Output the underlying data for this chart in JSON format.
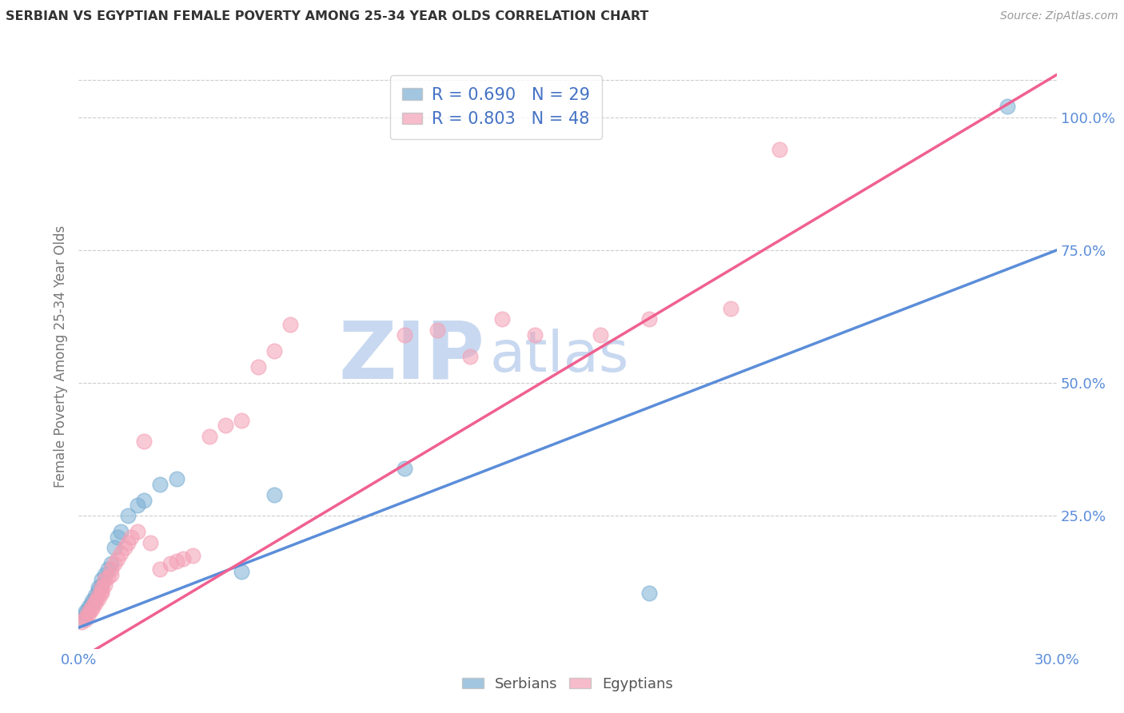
{
  "title": "SERBIAN VS EGYPTIAN FEMALE POVERTY AMONG 25-34 YEAR OLDS CORRELATION CHART",
  "source": "Source: ZipAtlas.com",
  "ylabel": "Female Poverty Among 25-34 Year Olds",
  "xlim": [
    0.0,
    0.3
  ],
  "ylim": [
    0.0,
    1.1
  ],
  "xticks": [
    0.0,
    0.05,
    0.1,
    0.15,
    0.2,
    0.25,
    0.3
  ],
  "xticklabels": [
    "0.0%",
    "",
    "",
    "",
    "",
    "",
    "30.0%"
  ],
  "yticks_right": [
    0.25,
    0.5,
    0.75,
    1.0
  ],
  "yticklabels_right": [
    "25.0%",
    "50.0%",
    "75.0%",
    "100.0%"
  ],
  "serbian_color": "#7BAFD4",
  "egyptian_color": "#F4A0B5",
  "serbian_line_color": "#5B8DD9",
  "egyptian_line_color": "#F06090",
  "serbian_R": 0.69,
  "serbian_N": 29,
  "egyptian_R": 0.803,
  "egyptian_N": 48,
  "grid_color": "#CCCCCC",
  "title_color": "#333333",
  "axis_label_color": "#5B8DD9",
  "R_N_color": "#4472C4",
  "watermark_zip": "ZIP",
  "watermark_atlas": "atlas",
  "watermark_color": "#C8D8F0",
  "background_color": "#FFFFFF",
  "serbian_x": [
    0.001,
    0.002,
    0.002,
    0.003,
    0.003,
    0.004,
    0.004,
    0.005,
    0.005,
    0.006,
    0.006,
    0.007,
    0.007,
    0.008,
    0.009,
    0.01,
    0.011,
    0.012,
    0.013,
    0.015,
    0.018,
    0.02,
    0.025,
    0.03,
    0.05,
    0.06,
    0.1,
    0.175,
    0.285
  ],
  "serbian_y": [
    0.055,
    0.065,
    0.07,
    0.075,
    0.08,
    0.085,
    0.09,
    0.095,
    0.1,
    0.11,
    0.115,
    0.12,
    0.13,
    0.14,
    0.15,
    0.16,
    0.19,
    0.21,
    0.22,
    0.25,
    0.27,
    0.28,
    0.31,
    0.32,
    0.145,
    0.29,
    0.34,
    0.105,
    1.02
  ],
  "egyptian_x": [
    0.001,
    0.002,
    0.002,
    0.003,
    0.003,
    0.004,
    0.004,
    0.005,
    0.005,
    0.006,
    0.006,
    0.007,
    0.007,
    0.007,
    0.008,
    0.008,
    0.009,
    0.01,
    0.01,
    0.011,
    0.012,
    0.013,
    0.014,
    0.015,
    0.016,
    0.018,
    0.02,
    0.022,
    0.025,
    0.028,
    0.03,
    0.032,
    0.035,
    0.04,
    0.045,
    0.05,
    0.055,
    0.06,
    0.065,
    0.1,
    0.11,
    0.12,
    0.13,
    0.14,
    0.16,
    0.175,
    0.2,
    0.215
  ],
  "egyptian_y": [
    0.05,
    0.055,
    0.06,
    0.065,
    0.07,
    0.075,
    0.08,
    0.085,
    0.09,
    0.095,
    0.1,
    0.105,
    0.11,
    0.115,
    0.12,
    0.13,
    0.135,
    0.14,
    0.15,
    0.16,
    0.17,
    0.18,
    0.19,
    0.2,
    0.21,
    0.22,
    0.39,
    0.2,
    0.15,
    0.16,
    0.165,
    0.17,
    0.175,
    0.4,
    0.42,
    0.43,
    0.53,
    0.56,
    0.61,
    0.59,
    0.6,
    0.55,
    0.62,
    0.59,
    0.59,
    0.62,
    0.64,
    0.94
  ],
  "serbian_line_x": [
    0.0,
    0.3
  ],
  "serbian_line_y": [
    0.04,
    0.75
  ],
  "egyptian_line_x": [
    0.0,
    0.3
  ],
  "egyptian_line_y": [
    -0.02,
    1.08
  ]
}
